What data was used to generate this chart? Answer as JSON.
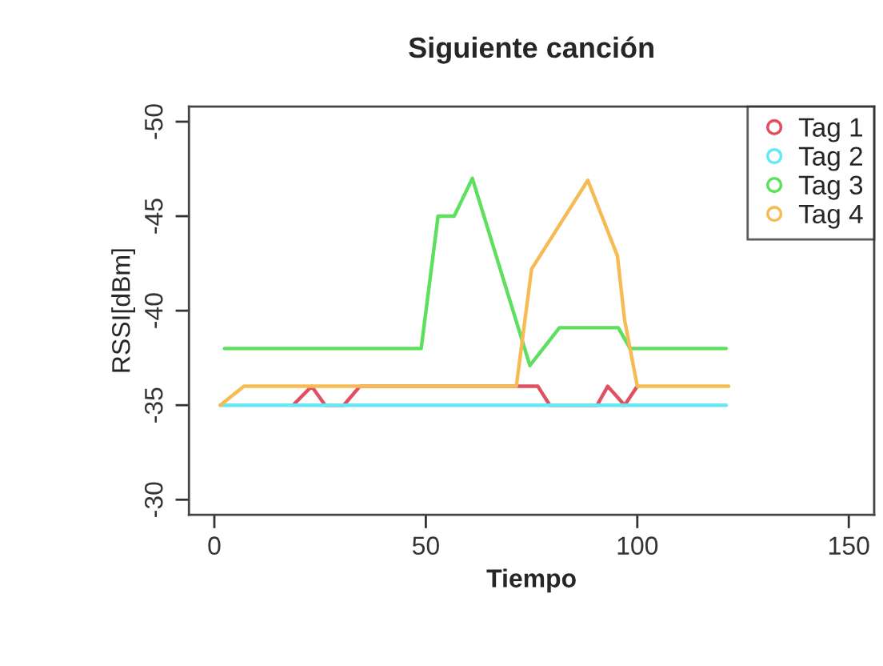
{
  "chart_data": {
    "type": "line",
    "title": "Siguiente canción",
    "xlabel": "Tiempo",
    "ylabel": "RSSI[dBm]",
    "xlim": [
      -6,
      156
    ],
    "xticks": [
      0,
      50,
      100,
      150
    ],
    "ylim": [
      -29.2,
      -50.8
    ],
    "yticks": [
      -50,
      -45,
      -40,
      -35,
      -30
    ],
    "grid": false,
    "legend": "top right",
    "series": [
      {
        "name": "Tag 1",
        "color": "#e05060",
        "x": [
          18.6,
          23,
          26.2,
          30.6,
          34.4,
          76.5,
          79.3,
          90.5,
          93,
          97,
          100
        ],
        "values": [
          -35,
          -36,
          -35,
          -35,
          -36,
          -36,
          -35,
          -35,
          -36,
          -35,
          -36
        ]
      },
      {
        "name": "Tag 2",
        "color": "#66e8f5",
        "x": [
          1.4,
          121
        ],
        "values": [
          -35,
          -35
        ]
      },
      {
        "name": "Tag 3",
        "color": "#5ee05e",
        "x": [
          2.4,
          48.9,
          52.9,
          56.7,
          61,
          74.6,
          81.6,
          95.5,
          98.3,
          121
        ],
        "values": [
          -38,
          -38,
          -45,
          -45,
          -47,
          -37.1,
          -39.1,
          -39.1,
          -38,
          -38
        ]
      },
      {
        "name": "Tag 4",
        "color": "#f7bb55",
        "x": [
          1.4,
          7,
          71.4,
          75,
          88.3,
          95.3,
          97,
          100,
          121.6
        ],
        "values": [
          -35,
          -36,
          -36,
          -42.2,
          -46.9,
          -42.9,
          -39.5,
          -36,
          -36
        ]
      }
    ]
  }
}
